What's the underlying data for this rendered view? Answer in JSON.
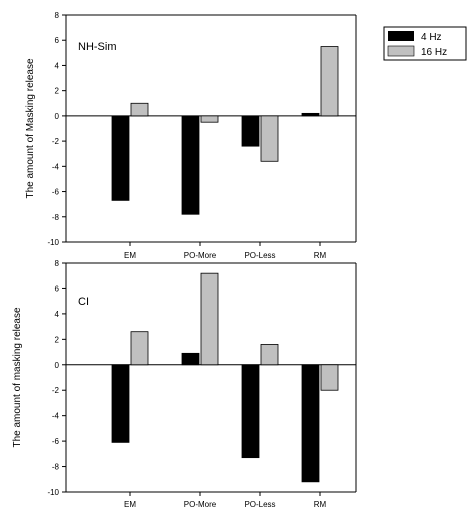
{
  "colors": {
    "series_4hz": "#000000",
    "series_16hz": "#c0c0c0"
  },
  "legend": {
    "placement": "top-right",
    "entries": [
      "4 Hz",
      "16 Hz"
    ]
  },
  "chart_data": [
    {
      "type": "bar",
      "title": "",
      "panel_label": "NH-Sim",
      "xlabel": "",
      "ylabel": "The amount of Masking release",
      "categories": [
        "EM",
        "PO-More",
        "PO-Less",
        "RM"
      ],
      "ylim": [
        -10,
        8
      ],
      "yticks": [
        -10,
        -8,
        -6,
        -4,
        -2,
        0,
        2,
        4,
        6,
        8
      ],
      "grid": false,
      "series": [
        {
          "name": "4 Hz",
          "values": [
            -6.7,
            -7.8,
            -2.4,
            0.2
          ]
        },
        {
          "name": "16 Hz",
          "values": [
            1.0,
            -0.5,
            -3.6,
            5.5
          ]
        }
      ]
    },
    {
      "type": "bar",
      "title": "",
      "panel_label": "CI",
      "xlabel": "",
      "ylabel": "The amount of masking release",
      "categories": [
        "EM",
        "PO-More",
        "PO-Less",
        "RM"
      ],
      "ylim": [
        -10,
        8
      ],
      "yticks": [
        -10,
        -8,
        -6,
        -4,
        -2,
        0,
        2,
        4,
        6,
        8
      ],
      "grid": false,
      "series": [
        {
          "name": "4 Hz",
          "values": [
            -6.1,
            0.9,
            -7.3,
            -9.2
          ]
        },
        {
          "name": "16 Hz",
          "values": [
            2.6,
            7.2,
            1.6,
            -2.0
          ]
        }
      ]
    }
  ]
}
